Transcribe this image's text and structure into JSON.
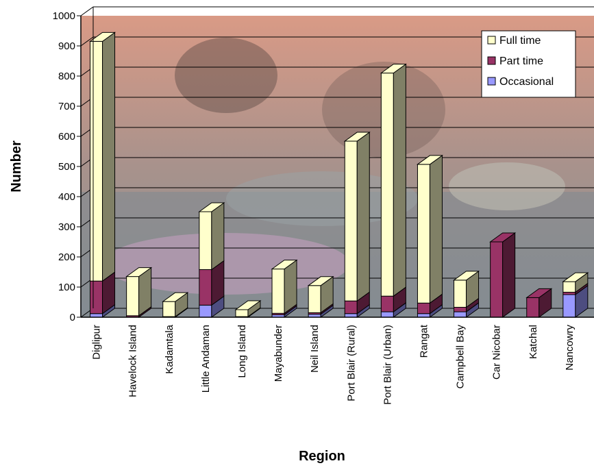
{
  "chart_data": {
    "type": "bar",
    "stacked": true,
    "three_d": true,
    "xlabel": "Region",
    "ylabel": "Number",
    "ylim": [
      0,
      1000
    ],
    "ytick_step": 100,
    "grid": true,
    "legend_position": "top-right",
    "background": "photo-of-fish-market",
    "categories": [
      "Diglipur",
      "Havelock Island",
      "Kadamtala",
      "Little Andaman",
      "Long Island",
      "Mayabunder",
      "Neil Island",
      "Port Blair (Rural)",
      "Port Blair (Urban)",
      "Rangat",
      "Campbell Bay",
      "Car Nicobar",
      "Katchal",
      "Nancowry"
    ],
    "series": [
      {
        "name": "Occasional",
        "color": "#9999ff",
        "values": [
          12,
          0,
          0,
          40,
          0,
          8,
          10,
          12,
          18,
          12,
          18,
          0,
          0,
          75
        ]
      },
      {
        "name": "Part time",
        "color": "#993366",
        "values": [
          108,
          5,
          2,
          118,
          2,
          5,
          5,
          42,
          52,
          35,
          15,
          250,
          65,
          8
        ]
      },
      {
        "name": "Full time",
        "color": "#ffffcc",
        "values": [
          795,
          130,
          50,
          192,
          23,
          147,
          90,
          530,
          740,
          460,
          90,
          0,
          0,
          35
        ]
      }
    ],
    "legend_order": [
      "Full time",
      "Part time",
      "Occasional"
    ]
  }
}
